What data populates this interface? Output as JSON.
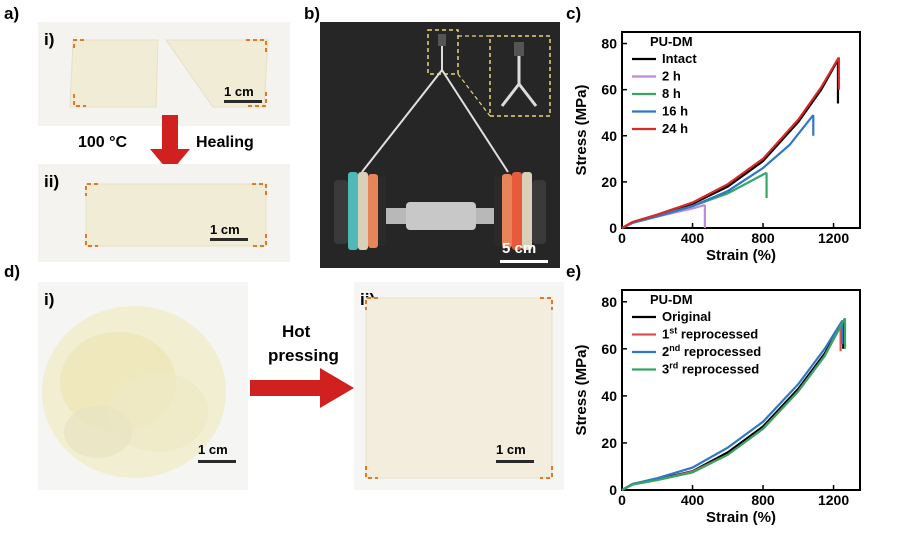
{
  "panels": {
    "a": {
      "label": "a)",
      "sub_i": "i)",
      "sub_ii": "ii)",
      "scale": "1 cm",
      "temp": "100 °C",
      "healing": "Healing"
    },
    "b": {
      "label": "b)",
      "scale": "5 cm"
    },
    "d": {
      "label": "d)",
      "sub_i": "i)",
      "sub_ii": "ii)",
      "scale": "1 cm",
      "hot": "Hot",
      "pressing": "pressing"
    },
    "c": {
      "label": "c)"
    },
    "e": {
      "label": "e)"
    }
  },
  "chart_data": [
    {
      "type": "line",
      "panel": "c",
      "title": "",
      "legend_title": "PU-DM",
      "xlabel": "Strain (%)",
      "ylabel": "Stress (MPa)",
      "xlim": [
        0,
        1350
      ],
      "ylim": [
        0,
        85
      ],
      "xticks": [
        0,
        400,
        800,
        1200
      ],
      "yticks": [
        0,
        20,
        40,
        60,
        80
      ],
      "legend_position": "top-left",
      "series": [
        {
          "name": "Intact",
          "color": "#000000",
          "points": [
            [
              0,
              0
            ],
            [
              60,
              2.5
            ],
            [
              200,
              5.5
            ],
            [
              400,
              10.5
            ],
            [
              600,
              18
            ],
            [
              800,
              29
            ],
            [
              1000,
              46
            ],
            [
              1130,
              60
            ],
            [
              1225,
              73
            ]
          ],
          "break": [
            1225,
            54
          ]
        },
        {
          "name": "2 h",
          "color": "#c08ad8",
          "points": [
            [
              0,
              0
            ],
            [
              60,
              2.3
            ],
            [
              200,
              5
            ],
            [
              400,
              8.5
            ],
            [
              470,
              10
            ]
          ],
          "break": [
            470,
            0
          ]
        },
        {
          "name": "8 h",
          "color": "#3aa366",
          "points": [
            [
              0,
              0
            ],
            [
              60,
              2.4
            ],
            [
              200,
              5.2
            ],
            [
              400,
              9.5
            ],
            [
              600,
              15
            ],
            [
              820,
              24
            ]
          ],
          "break": [
            820,
            13
          ]
        },
        {
          "name": "16 h",
          "color": "#2e78c8",
          "points": [
            [
              0,
              0
            ],
            [
              60,
              2.2
            ],
            [
              200,
              5
            ],
            [
              400,
              9.5
            ],
            [
              600,
              16
            ],
            [
              800,
              26
            ],
            [
              950,
              36
            ],
            [
              1085,
              49
            ]
          ],
          "break": [
            1085,
            40
          ]
        },
        {
          "name": "24 h",
          "color": "#d82828",
          "points": [
            [
              0,
              0
            ],
            [
              60,
              2.6
            ],
            [
              200,
              5.8
            ],
            [
              400,
              11
            ],
            [
              600,
              19
            ],
            [
              800,
              30
            ],
            [
              1000,
              47
            ],
            [
              1130,
              61
            ],
            [
              1230,
              74
            ]
          ],
          "break": [
            1230,
            60
          ]
        }
      ]
    },
    {
      "type": "line",
      "panel": "e",
      "title": "",
      "legend_title": "PU-DM",
      "xlabel": "Strain (%)",
      "ylabel": "Stress (MPa)",
      "xlim": [
        0,
        1350
      ],
      "ylim": [
        0,
        85
      ],
      "xticks": [
        0,
        400,
        800,
        1200
      ],
      "yticks": [
        0,
        20,
        40,
        60,
        80
      ],
      "legend_position": "top-left",
      "series": [
        {
          "name": "Original",
          "name_sup": "",
          "name_rest": "",
          "color": "#000000",
          "points": [
            [
              0,
              0
            ],
            [
              60,
              2.5
            ],
            [
              200,
              4.5
            ],
            [
              400,
              8
            ],
            [
              600,
              16
            ],
            [
              800,
              27
            ],
            [
              1000,
              43
            ],
            [
              1150,
              58
            ],
            [
              1255,
              72
            ]
          ],
          "break": [
            1255,
            60
          ]
        },
        {
          "name": "1",
          "name_sup": "st",
          "name_rest": " reprocessed",
          "color": "#e05050",
          "points": [
            [
              0,
              0
            ],
            [
              60,
              2.4
            ],
            [
              200,
              4.3
            ],
            [
              400,
              7.8
            ],
            [
              600,
              15
            ],
            [
              800,
              26
            ],
            [
              1000,
              42
            ],
            [
              1150,
              57
            ],
            [
              1240,
              70
            ]
          ],
          "break": [
            1240,
            59
          ]
        },
        {
          "name": "2",
          "name_sup": "nd",
          "name_rest": " reprocessed",
          "color": "#2e78c8",
          "points": [
            [
              0,
              0
            ],
            [
              60,
              2.6
            ],
            [
              200,
              5
            ],
            [
              400,
              9.5
            ],
            [
              600,
              18
            ],
            [
              800,
              29
            ],
            [
              1000,
              45
            ],
            [
              1150,
              60
            ],
            [
              1250,
              72
            ]
          ],
          "break": [
            1250,
            62
          ]
        },
        {
          "name": "3",
          "name_sup": "rd",
          "name_rest": " reprocessed",
          "color": "#3aa366",
          "points": [
            [
              0,
              0
            ],
            [
              60,
              2.3
            ],
            [
              200,
              4.2
            ],
            [
              400,
              7.5
            ],
            [
              600,
              15
            ],
            [
              800,
              26
            ],
            [
              1000,
              42
            ],
            [
              1150,
              57
            ],
            [
              1265,
              73
            ]
          ],
          "break": [
            1265,
            60
          ]
        }
      ]
    }
  ]
}
